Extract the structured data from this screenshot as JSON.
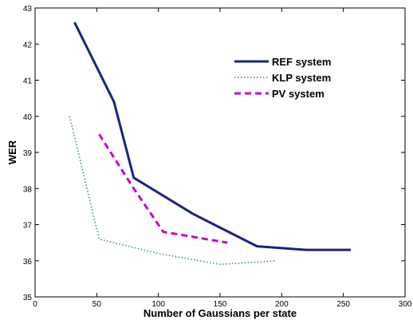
{
  "chart_data": {
    "type": "line",
    "title": "",
    "xlabel": "Number of Gaussians per state",
    "ylabel": "WER",
    "xlim": [
      0,
      300
    ],
    "ylim": [
      35,
      43
    ],
    "xticks": [
      0,
      50,
      100,
      150,
      200,
      250,
      300
    ],
    "yticks": [
      35,
      36,
      37,
      38,
      39,
      40,
      41,
      42,
      43
    ],
    "grid": false,
    "legend_position": "top-right",
    "series": [
      {
        "name": "REF system",
        "color": "#1a237e",
        "style": "solid",
        "x": [
          32,
          64,
          80,
          128,
          180,
          220,
          256
        ],
        "y": [
          42.6,
          40.4,
          38.3,
          37.3,
          36.4,
          36.3,
          36.3
        ]
      },
      {
        "name": "KLP system",
        "color": "#2e8b7a",
        "style": "dotted",
        "x": [
          28,
          52,
          100,
          150,
          195
        ],
        "y": [
          40.0,
          36.6,
          36.2,
          35.9,
          36.0
        ]
      },
      {
        "name": "PV system",
        "color": "#cc00cc",
        "style": "dashed",
        "x": [
          52,
          80,
          104,
          156
        ],
        "y": [
          39.5,
          38.0,
          36.8,
          36.5
        ]
      }
    ]
  }
}
